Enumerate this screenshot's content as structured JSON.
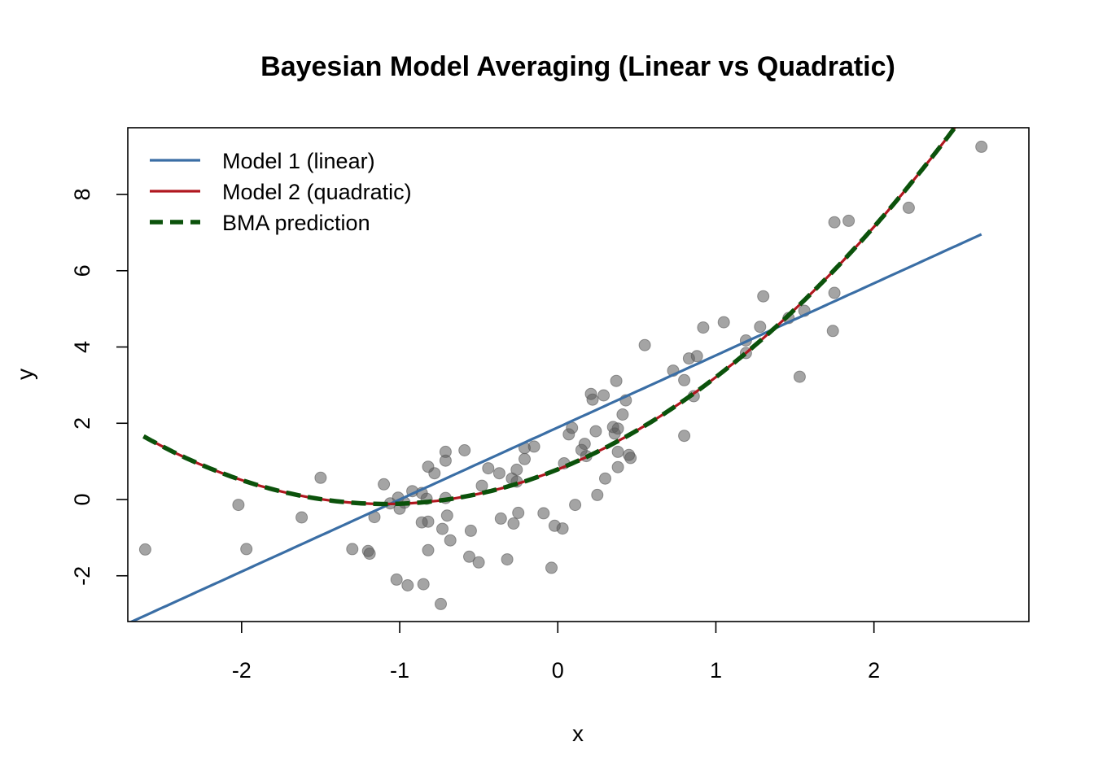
{
  "chart_data": {
    "type": "scatter",
    "title": "Bayesian Model Averaging (Linear vs Quadratic)",
    "xlabel": "x",
    "ylabel": "y",
    "xlim": [
      -2.72,
      2.98
    ],
    "ylim": [
      -3.2,
      9.75
    ],
    "xticks": [
      -2,
      -1,
      0,
      1,
      2
    ],
    "yticks": [
      -2,
      0,
      2,
      4,
      6,
      8
    ],
    "grid": false,
    "legend_position": "top-left",
    "colors": {
      "points": "#5a5a5a",
      "linear": "#3a6ea5",
      "quadratic": "#b0171f",
      "bma": "#0b520b"
    },
    "legend": [
      {
        "key": "linear",
        "label": "Model 1 (linear)",
        "style": "solid"
      },
      {
        "key": "quadratic",
        "label": "Model 2 (quadratic)",
        "style": "solid"
      },
      {
        "key": "bma",
        "label": "BMA prediction",
        "style": "dashed"
      }
    ],
    "points": [
      [
        -2.61,
        -1.31
      ],
      [
        -2.02,
        -0.14
      ],
      [
        -1.97,
        -1.3
      ],
      [
        -1.62,
        -0.47
      ],
      [
        -1.5,
        0.57
      ],
      [
        -1.3,
        -1.3
      ],
      [
        -1.2,
        -1.35
      ],
      [
        -1.19,
        -1.42
      ],
      [
        -1.16,
        -0.46
      ],
      [
        -1.1,
        0.4
      ],
      [
        -1.06,
        -0.1
      ],
      [
        -1.02,
        -2.1
      ],
      [
        -1.01,
        0.05
      ],
      [
        -1.0,
        -0.24
      ],
      [
        -0.97,
        -0.08
      ],
      [
        -0.95,
        -2.25
      ],
      [
        -0.92,
        0.22
      ],
      [
        -0.86,
        -0.6
      ],
      [
        -0.86,
        0.17
      ],
      [
        -0.85,
        -2.22
      ],
      [
        -0.83,
        0.02
      ],
      [
        -0.82,
        0.86
      ],
      [
        -0.82,
        -1.33
      ],
      [
        -0.82,
        -0.58
      ],
      [
        -0.78,
        0.69
      ],
      [
        -0.74,
        -2.74
      ],
      [
        -0.73,
        -0.77
      ],
      [
        -0.71,
        1.25
      ],
      [
        -0.71,
        1.02
      ],
      [
        -0.71,
        0.04
      ],
      [
        -0.7,
        -0.42
      ],
      [
        -0.68,
        -1.07
      ],
      [
        -0.59,
        1.29
      ],
      [
        -0.55,
        -0.82
      ],
      [
        -0.56,
        -1.5
      ],
      [
        -0.5,
        -1.65
      ],
      [
        -0.48,
        0.36
      ],
      [
        -0.44,
        0.82
      ],
      [
        -0.36,
        -0.5
      ],
      [
        -0.37,
        0.69
      ],
      [
        -0.32,
        -1.57
      ],
      [
        -0.29,
        0.55
      ],
      [
        -0.28,
        -0.63
      ],
      [
        -0.26,
        0.78
      ],
      [
        -0.26,
        0.47
      ],
      [
        -0.25,
        -0.35
      ],
      [
        -0.21,
        1.35
      ],
      [
        -0.21,
        1.06
      ],
      [
        -0.15,
        1.39
      ],
      [
        -0.09,
        -0.36
      ],
      [
        -0.04,
        -1.79
      ],
      [
        -0.02,
        -0.69
      ],
      [
        0.03,
        -0.76
      ],
      [
        0.04,
        0.95
      ],
      [
        0.07,
        1.71
      ],
      [
        0.09,
        1.88
      ],
      [
        0.11,
        -0.14
      ],
      [
        0.15,
        1.3
      ],
      [
        0.17,
        1.46
      ],
      [
        0.18,
        1.14
      ],
      [
        0.21,
        2.77
      ],
      [
        0.22,
        2.62
      ],
      [
        0.24,
        1.79
      ],
      [
        0.25,
        0.12
      ],
      [
        0.29,
        2.73
      ],
      [
        0.3,
        0.55
      ],
      [
        0.35,
        1.9
      ],
      [
        0.36,
        1.73
      ],
      [
        0.37,
        3.11
      ],
      [
        0.38,
        1.86
      ],
      [
        0.38,
        1.25
      ],
      [
        0.38,
        0.85
      ],
      [
        0.41,
        2.23
      ],
      [
        0.43,
        2.6
      ],
      [
        0.45,
        1.17
      ],
      [
        0.46,
        1.09
      ],
      [
        0.55,
        4.05
      ],
      [
        0.73,
        3.38
      ],
      [
        0.8,
        3.13
      ],
      [
        0.8,
        1.67
      ],
      [
        0.83,
        3.7
      ],
      [
        0.86,
        2.71
      ],
      [
        0.88,
        3.76
      ],
      [
        0.92,
        4.51
      ],
      [
        1.05,
        4.65
      ],
      [
        1.19,
        4.17
      ],
      [
        1.19,
        3.84
      ],
      [
        1.28,
        4.53
      ],
      [
        1.3,
        5.33
      ],
      [
        1.46,
        4.76
      ],
      [
        1.53,
        3.22
      ],
      [
        1.56,
        4.95
      ],
      [
        1.74,
        4.42
      ],
      [
        1.75,
        7.27
      ],
      [
        1.75,
        5.42
      ],
      [
        1.84,
        7.31
      ],
      [
        2.22,
        7.65
      ],
      [
        2.68,
        9.25
      ]
    ],
    "linear_model": {
      "intercept": 1.89,
      "slope": 1.89,
      "x_range": [
        -2.72,
        2.68
      ]
    },
    "quadratic_model": {
      "a": 0.76,
      "b": 1.66,
      "c": 0.79,
      "x_range": [
        -2.62,
        2.68
      ]
    },
    "bma_model": {
      "a": 0.76,
      "b": 1.66,
      "c": 0.79,
      "x_range": [
        -2.62,
        2.68
      ]
    }
  }
}
